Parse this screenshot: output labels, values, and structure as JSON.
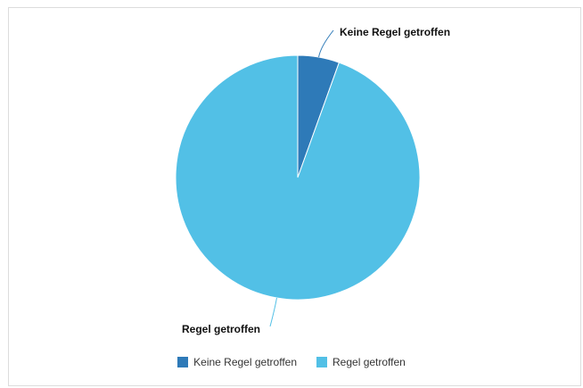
{
  "chart_data": {
    "type": "pie",
    "title": "",
    "legend_position": "bottom",
    "slices": [
      {
        "label": "Keine Regel getroffen",
        "value": 5.5,
        "color": "#2e7ab8"
      },
      {
        "label": "Regel getroffen",
        "value": 94.5,
        "color": "#52c0e6"
      }
    ]
  }
}
